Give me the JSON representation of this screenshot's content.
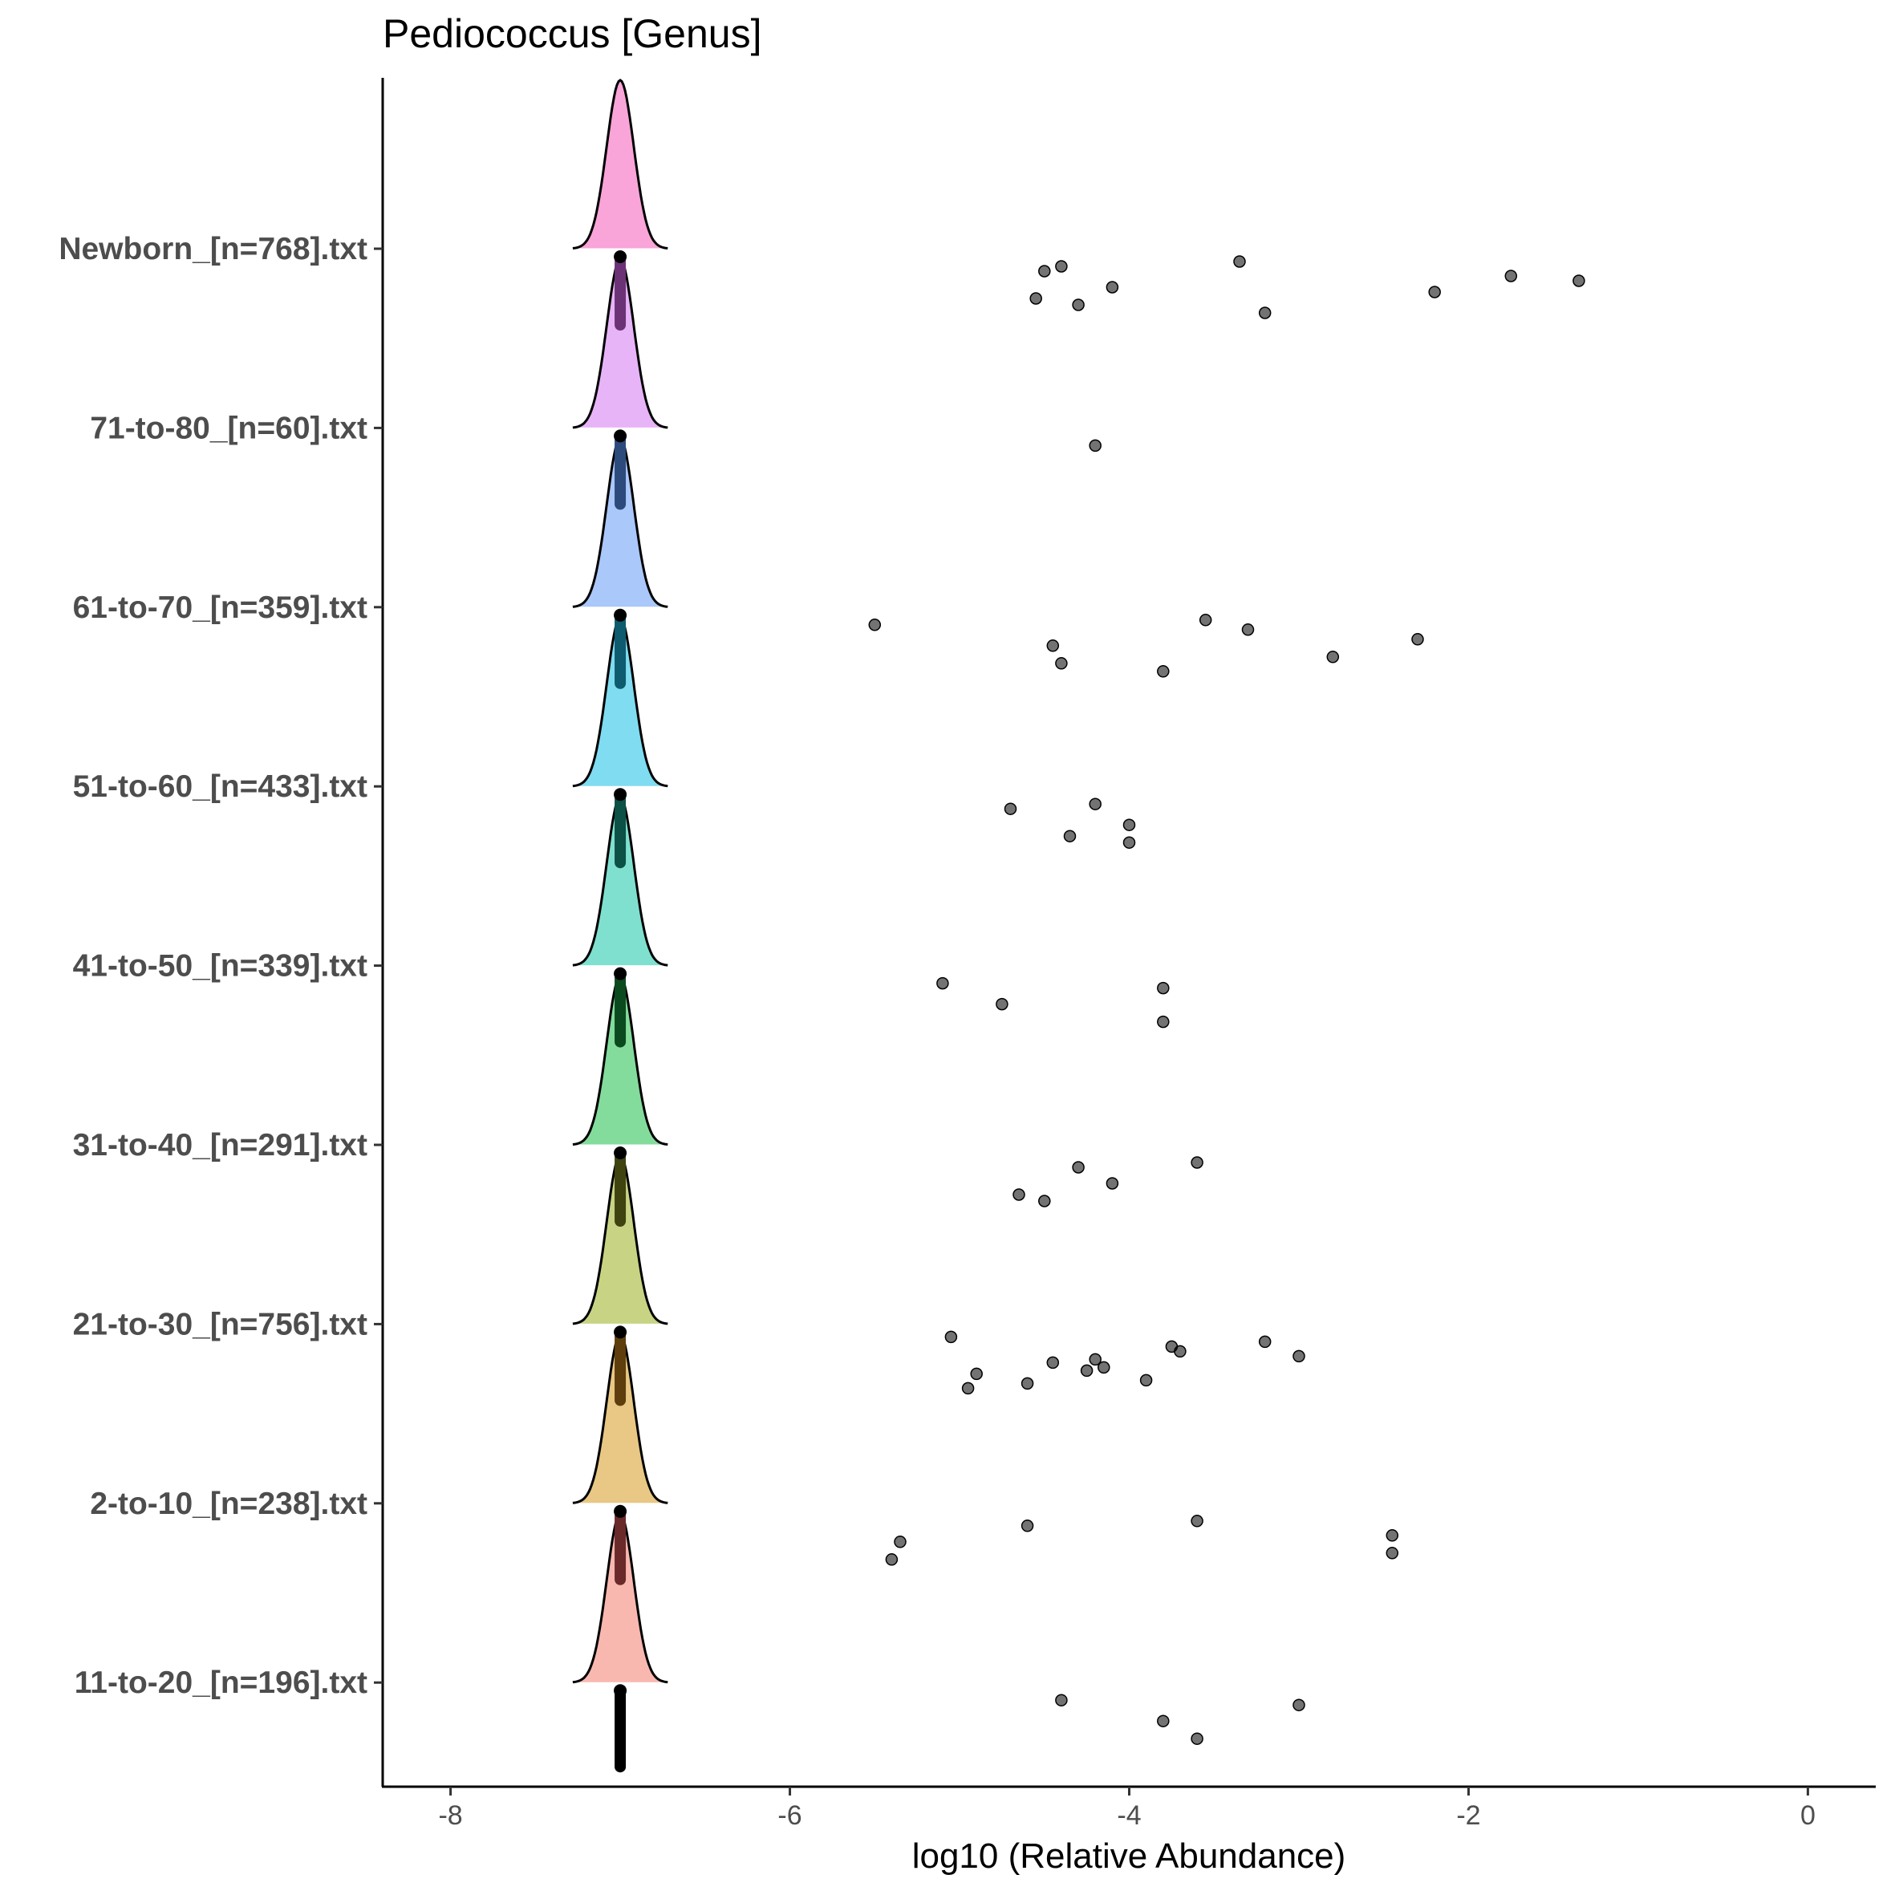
{
  "chart_data": {
    "type": "ridgeline",
    "title": "Pediococcus [Genus]",
    "xlabel": "log10 (Relative Abundance)",
    "ylabel": "",
    "xlim": [
      -8.4,
      0.4
    ],
    "xticks": [
      -8,
      -6,
      -4,
      -2,
      0
    ],
    "xtick_labels": [
      "-8",
      "-6",
      "-4",
      "-2",
      "0"
    ],
    "grid": false,
    "legend": "none",
    "categories": [
      "Newborn_[n=768].txt",
      "71-to-80_[n=60].txt",
      "61-to-70_[n=359].txt",
      "51-to-60_[n=433].txt",
      "41-to-50_[n=339].txt",
      "31-to-40_[n=291].txt",
      "21-to-30_[n=756].txt",
      "2-to-10_[n=238].txt",
      "11-to-20_[n=196].txt"
    ],
    "density_peak_x": -7,
    "colors": [
      "#f9a5d9",
      "#e8b4f8",
      "#aac8fa",
      "#80dcf0",
      "#80e0d0",
      "#84dc9c",
      "#c8d484",
      "#e8c884",
      "#f8b8b0"
    ],
    "median_bar_colors": [
      "#6b3376",
      "#2c4a7c",
      "#0e5a6e",
      "#0c5046",
      "#0b4a1e",
      "#3f4310",
      "#5e3e0c",
      "#6a2a2a",
      "#000000"
    ],
    "series": [
      {
        "category": "Newborn_[n=768].txt",
        "points": [
          -4.4,
          -4.1,
          -4.3,
          -4.5,
          -4.55,
          -1.35,
          -3.2,
          -3.35,
          -2.2,
          -1.75
        ]
      },
      {
        "category": "71-to-80_[n=60].txt",
        "points": [
          -4.2
        ]
      },
      {
        "category": "61-to-70_[n=359].txt",
        "points": [
          -5.5,
          -4.45,
          -4.4,
          -3.3,
          -2.8,
          -2.3,
          -3.8,
          -3.55
        ]
      },
      {
        "category": "51-to-60_[n=433].txt",
        "points": [
          -4.2,
          -4.0,
          -4.0,
          -4.7,
          -4.35
        ]
      },
      {
        "category": "41-to-50_[n=339].txt",
        "points": [
          -5.1,
          -4.75,
          -3.8,
          -3.8
        ]
      },
      {
        "category": "31-to-40_[n=291].txt",
        "points": [
          -3.6,
          -4.1,
          -4.5,
          -4.3,
          -4.65
        ]
      },
      {
        "category": "21-to-30_[n=756].txt",
        "points": [
          -3.2,
          -4.45,
          -3.9,
          -3.75,
          -4.9,
          -3.0,
          -4.95,
          -5.05,
          -4.15,
          -3.7,
          -4.6,
          -4.2,
          -4.25
        ]
      },
      {
        "category": "2-to-10_[n=238].txt",
        "points": [
          -3.6,
          -5.35,
          -5.4,
          -4.6,
          -2.45,
          -2.45
        ]
      },
      {
        "category": "11-to-20_[n=196].txt",
        "points": [
          -4.4,
          -3.8,
          -3.6,
          -3.0
        ]
      }
    ]
  }
}
